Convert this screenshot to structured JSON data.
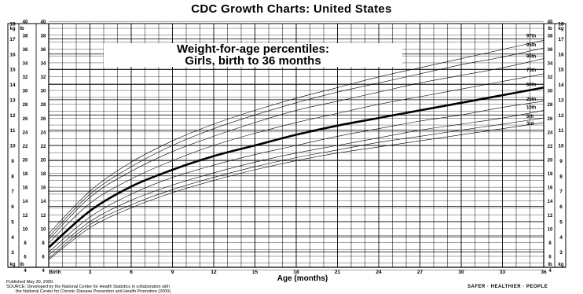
{
  "header": {
    "title": "CDC Growth Charts: United States"
  },
  "chart_data": {
    "type": "line",
    "title_line1": "Weight-for-age percentiles:",
    "title_line2": "Girls, birth to 36 months",
    "xlabel": "Age (months)",
    "x_ticks": [
      "Birth",
      "3",
      "6",
      "9",
      "12",
      "15",
      "18",
      "21",
      "24",
      "27",
      "30",
      "33",
      "36"
    ],
    "x_tick_values": [
      0,
      3,
      6,
      9,
      12,
      15,
      18,
      21,
      24,
      27,
      30,
      33,
      36
    ],
    "xlim": [
      0,
      36
    ],
    "ylim_kg": [
      2,
      18
    ],
    "kg_unit": "kg",
    "lb_unit": "lb",
    "kg_ticks": [
      3,
      4,
      5,
      6,
      7,
      8,
      9,
      10,
      11,
      12,
      13,
      14,
      15,
      16,
      17,
      18
    ],
    "lb_ticks": [
      4,
      6,
      8,
      10,
      12,
      14,
      16,
      18,
      20,
      22,
      24,
      26,
      28,
      30,
      32,
      34,
      36,
      38,
      40
    ],
    "grid": true,
    "x": [
      0,
      3,
      6,
      9,
      12,
      15,
      18,
      21,
      24,
      27,
      30,
      33,
      36
    ],
    "series": [
      {
        "name": "97th",
        "values": [
          4.2,
          7.0,
          8.9,
          10.3,
          11.4,
          12.3,
          13.1,
          13.8,
          14.5,
          15.1,
          15.7,
          16.3,
          16.9
        ]
      },
      {
        "name": "95th",
        "values": [
          4.0,
          6.8,
          8.6,
          10.0,
          11.1,
          12.0,
          12.8,
          13.5,
          14.1,
          14.7,
          15.3,
          15.8,
          16.4
        ]
      },
      {
        "name": "90th",
        "values": [
          3.8,
          6.6,
          8.3,
          9.6,
          10.6,
          11.5,
          12.3,
          12.9,
          13.5,
          14.1,
          14.6,
          15.1,
          15.7
        ]
      },
      {
        "name": "75th",
        "values": [
          3.6,
          6.2,
          7.8,
          9.0,
          10.0,
          10.8,
          11.5,
          12.1,
          12.7,
          13.2,
          13.7,
          14.2,
          14.7
        ]
      },
      {
        "name": "50th",
        "values": [
          3.3,
          5.7,
          7.3,
          8.4,
          9.3,
          10.0,
          10.7,
          11.3,
          11.8,
          12.3,
          12.8,
          13.3,
          13.8
        ]
      },
      {
        "name": "25th",
        "values": [
          3.0,
          5.3,
          6.8,
          7.9,
          8.7,
          9.4,
          10.0,
          10.6,
          11.1,
          11.6,
          12.0,
          12.5,
          12.9
        ]
      },
      {
        "name": "10th",
        "values": [
          2.8,
          5.0,
          6.4,
          7.4,
          8.2,
          8.9,
          9.5,
          10.0,
          10.5,
          11.0,
          11.4,
          11.8,
          12.3
        ]
      },
      {
        "name": "5th",
        "values": [
          2.6,
          4.8,
          6.1,
          7.1,
          7.9,
          8.6,
          9.2,
          9.7,
          10.2,
          10.6,
          11.0,
          11.4,
          11.8
        ]
      },
      {
        "name": "3rd",
        "values": [
          2.5,
          4.6,
          5.9,
          6.9,
          7.7,
          8.4,
          9.0,
          9.5,
          9.9,
          10.3,
          10.7,
          11.1,
          11.5
        ]
      }
    ],
    "line_color": "#000000",
    "emphasized_series": "50th"
  },
  "footer": {
    "published": "Published May 30, 2000.",
    "source_line1": "SOURCE: Developed by the National Center for Health Statistics in collaboration with",
    "source_line2": "the National Center for Chronic Disease Prevention and Health Promotion (2000).",
    "publisher": "SAFER · HEALTHIER · PEOPLE"
  }
}
